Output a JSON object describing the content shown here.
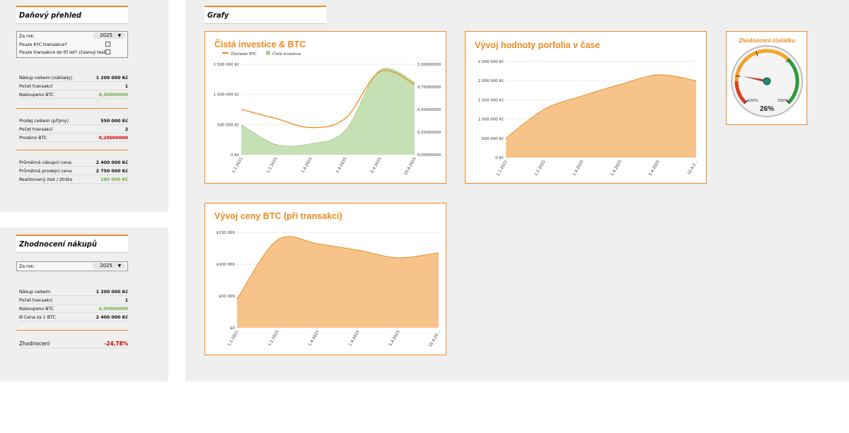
{
  "tax": {
    "title": "Daňový přehled",
    "year_label": "Za rok:",
    "year_value": "2025",
    "kyc_label": "Pouze KYC transakce?",
    "three_years_label": "Pouze transakce do tří let? (časový test)",
    "purchase_total_label": "Nákup celkem (náklady)",
    "purchase_total_value": "1 200 000 Kč",
    "purchase_count_label": "Počet transakcí",
    "purchase_count_value": "1",
    "purchased_btc_label": "Nakoupeno BTC",
    "purchased_btc_value": "0,50000000",
    "sale_total_label": "Prodej celkem (příjmy)",
    "sale_total_value": "550 000 Kč",
    "sale_count_label": "Počet transakcí",
    "sale_count_value": "2",
    "sold_btc_label": "Prodáno BTC",
    "sold_btc_value": "0,20000000",
    "avg_buy_label": "Průměrná nákupní cena",
    "avg_buy_value": "2 400 000 Kč",
    "avg_sell_label": "Průměrná prodejní cena",
    "avg_sell_value": "2 750 000 Kč",
    "realized_label": "Realizovaný zisk / ztráta",
    "realized_value": "280 000 Kč"
  },
  "purchases": {
    "title": "Zhodnocení nákupů",
    "year_label": "Za rok:",
    "year_value": "2025",
    "total_label": "Nákup celkem",
    "total_value": "1 200 000 Kč",
    "count_label": "Počet transakcí",
    "count_value": "1",
    "btc_label": "Nakoupeno BTC",
    "btc_value": "0,50000000",
    "price_label": "Ø Cena za 1 BTC",
    "price_value": "2 400 000 Kč",
    "appreciation_label": "Zhodnocení",
    "appreciation_value": "-24,78%"
  },
  "charts_section": {
    "title": "Grafy"
  },
  "colors": {
    "accent": "#ec8a1f",
    "green": "#70ad47",
    "red": "#d00000",
    "orange_fill": "#f6c48b"
  },
  "chart_data": [
    {
      "type": "area",
      "title": "Čistá investice & BTC",
      "x": [
        "1.1.2021",
        "1.2.2025",
        "1.4.2025",
        "1.4.2025",
        "5.4.2025",
        "10.4.2025"
      ],
      "series": [
        {
          "name": "Čistá investice",
          "values": [
            500000,
            170000,
            180000,
            400000,
            1400000,
            1200000
          ],
          "axis": "left"
        },
        {
          "name": "Zůstatek BTC",
          "values": [
            0.5,
            0.4,
            0.3,
            0.4,
            0.92,
            0.78
          ],
          "axis": "right"
        }
      ],
      "ylim": [
        0,
        1500000
      ],
      "yticks": [
        "0 Kč",
        "500 000 Kč",
        "1 000 000 Kč",
        "1 500 000 Kč"
      ],
      "ylim_right": [
        0,
        1
      ],
      "yticks_right": [
        "0,00000000",
        "0,25000000",
        "0,50000000",
        "0,75000000",
        "1,00000000"
      ],
      "legend": "top-left"
    },
    {
      "type": "area",
      "title": "Vývoj hodnoty porfolia v čase",
      "x": [
        "1.1.2021",
        "1.2.2025",
        "1.4.2025",
        "1.4.2025",
        "5.4.2025",
        "10.4.2..."
      ],
      "series": [
        {
          "values": [
            500000,
            1250000,
            1600000,
            1900000,
            2150000,
            2000000
          ]
        }
      ],
      "ylim": [
        0,
        2500000
      ],
      "yticks": [
        "0 Kč",
        "500 000 Kč",
        "1 000 000 Kč",
        "1 500 000 Kč",
        "2 000 000 Kč",
        "2 500 000 Kč"
      ]
    },
    {
      "type": "area",
      "title": "Vývoj ceny BTC (při transakci)",
      "x": [
        "1.1.2021",
        "1.2.2025",
        "1.4.2025",
        "1.4.2025",
        "5.4.2025",
        "10.4.20..."
      ],
      "series": [
        {
          "values": [
            45000,
            138000,
            132000,
            122000,
            110000,
            118000
          ]
        }
      ],
      "ylim": [
        0,
        150000
      ],
      "yticks": [
        "$0",
        "$50 000",
        "$100 000",
        "$150 000"
      ]
    },
    {
      "type": "gauge",
      "title": "Zhodnocení zůstatku",
      "value_percent": 26,
      "value_label": "26%",
      "tick_labels": [
        "-100%",
        "500%"
      ]
    }
  ]
}
